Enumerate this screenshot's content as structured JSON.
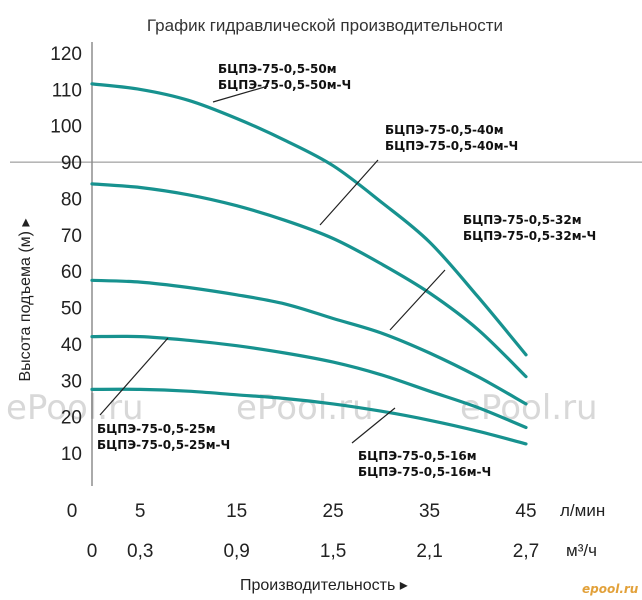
{
  "chart_data": {
    "type": "line",
    "title": "График гидравлической производительности",
    "xlabel": "Производительность",
    "ylabel": "Высота подъема (м)",
    "x_units": [
      "л/мин",
      "м³/ч"
    ],
    "x_ticks_lmin": [
      0,
      5,
      15,
      25,
      35,
      45
    ],
    "x_ticks_m3h": [
      "0",
      "0,3",
      "0,9",
      "1,5",
      "2,1",
      "2,7"
    ],
    "y_ticks": [
      10,
      20,
      30,
      40,
      50,
      60,
      70,
      80,
      90,
      100,
      110,
      120
    ],
    "xlim": [
      0,
      45
    ],
    "ylim": [
      10,
      120
    ],
    "x_axis_zero_label": "0",
    "grid": "horizontal line at 90",
    "curve_color": "#17928f",
    "series": [
      {
        "label_lines": [
          "БЦПЭ-75-0,5-50м",
          "БЦПЭ-75-0,5-50м-Ч"
        ],
        "x": [
          0,
          5,
          10,
          15,
          20,
          25,
          30,
          35,
          40,
          45
        ],
        "y": [
          111.5,
          110,
          107,
          102,
          96,
          89,
          79,
          68,
          53,
          37
        ]
      },
      {
        "label_lines": [
          "БЦПЭ-75-0,5-40м",
          "БЦПЭ-75-0,5-40м-Ч"
        ],
        "x": [
          0,
          5,
          10,
          15,
          20,
          25,
          30,
          35,
          40,
          45
        ],
        "y": [
          84,
          83,
          81,
          78,
          74,
          69,
          62,
          54,
          44,
          31
        ]
      },
      {
        "label_lines": [
          "БЦПЭ-75-0,5-32м",
          "БЦПЭ-75-0,5-32м-Ч"
        ],
        "x": [
          0,
          5,
          10,
          15,
          20,
          25,
          30,
          35,
          40,
          45
        ],
        "y": [
          57.5,
          57,
          55.5,
          53.5,
          51,
          47,
          43,
          37.5,
          31,
          23.5
        ]
      },
      {
        "label_lines": [
          "БЦПЭ-75-0,5-25м",
          "БЦПЭ-75-0,5-25м-Ч"
        ],
        "x": [
          0,
          5,
          10,
          15,
          20,
          25,
          30,
          35,
          40,
          45
        ],
        "y": [
          42,
          42,
          41,
          39.5,
          37.5,
          35,
          31.5,
          27,
          22.5,
          17
        ]
      },
      {
        "label_lines": [
          "БЦПЭ-75-0,5-16м",
          "БЦПЭ-75-0,5-16м-Ч"
        ],
        "x": [
          0,
          5,
          10,
          15,
          20,
          25,
          30,
          35,
          40,
          45
        ],
        "y": [
          27.5,
          27.5,
          27,
          26,
          25,
          23.5,
          21.5,
          19,
          16,
          12.5
        ]
      }
    ]
  },
  "watermarks": [
    "ePool.ru",
    "ePool.ru",
    "ePool.ru"
  ],
  "corner_logo": "epool.ru"
}
